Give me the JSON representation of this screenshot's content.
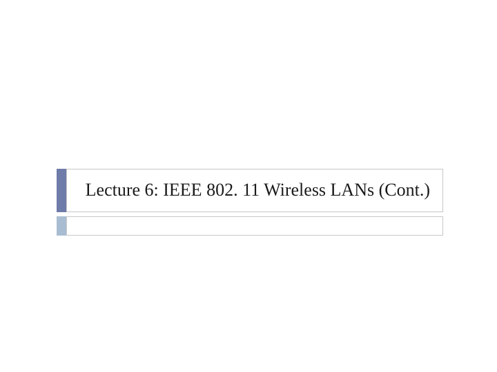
{
  "slide": {
    "title": "Lecture 6:  IEEE 802. 11 Wireless LANs (Cont.)",
    "accent_color_primary": "#6f7ba8",
    "accent_color_secondary": "#a9bdd2",
    "border_color": "#c8c8c8",
    "background_color": "#ffffff",
    "title_fontsize": 26,
    "title_color": "#1a1a1a",
    "font_family": "Georgia"
  }
}
